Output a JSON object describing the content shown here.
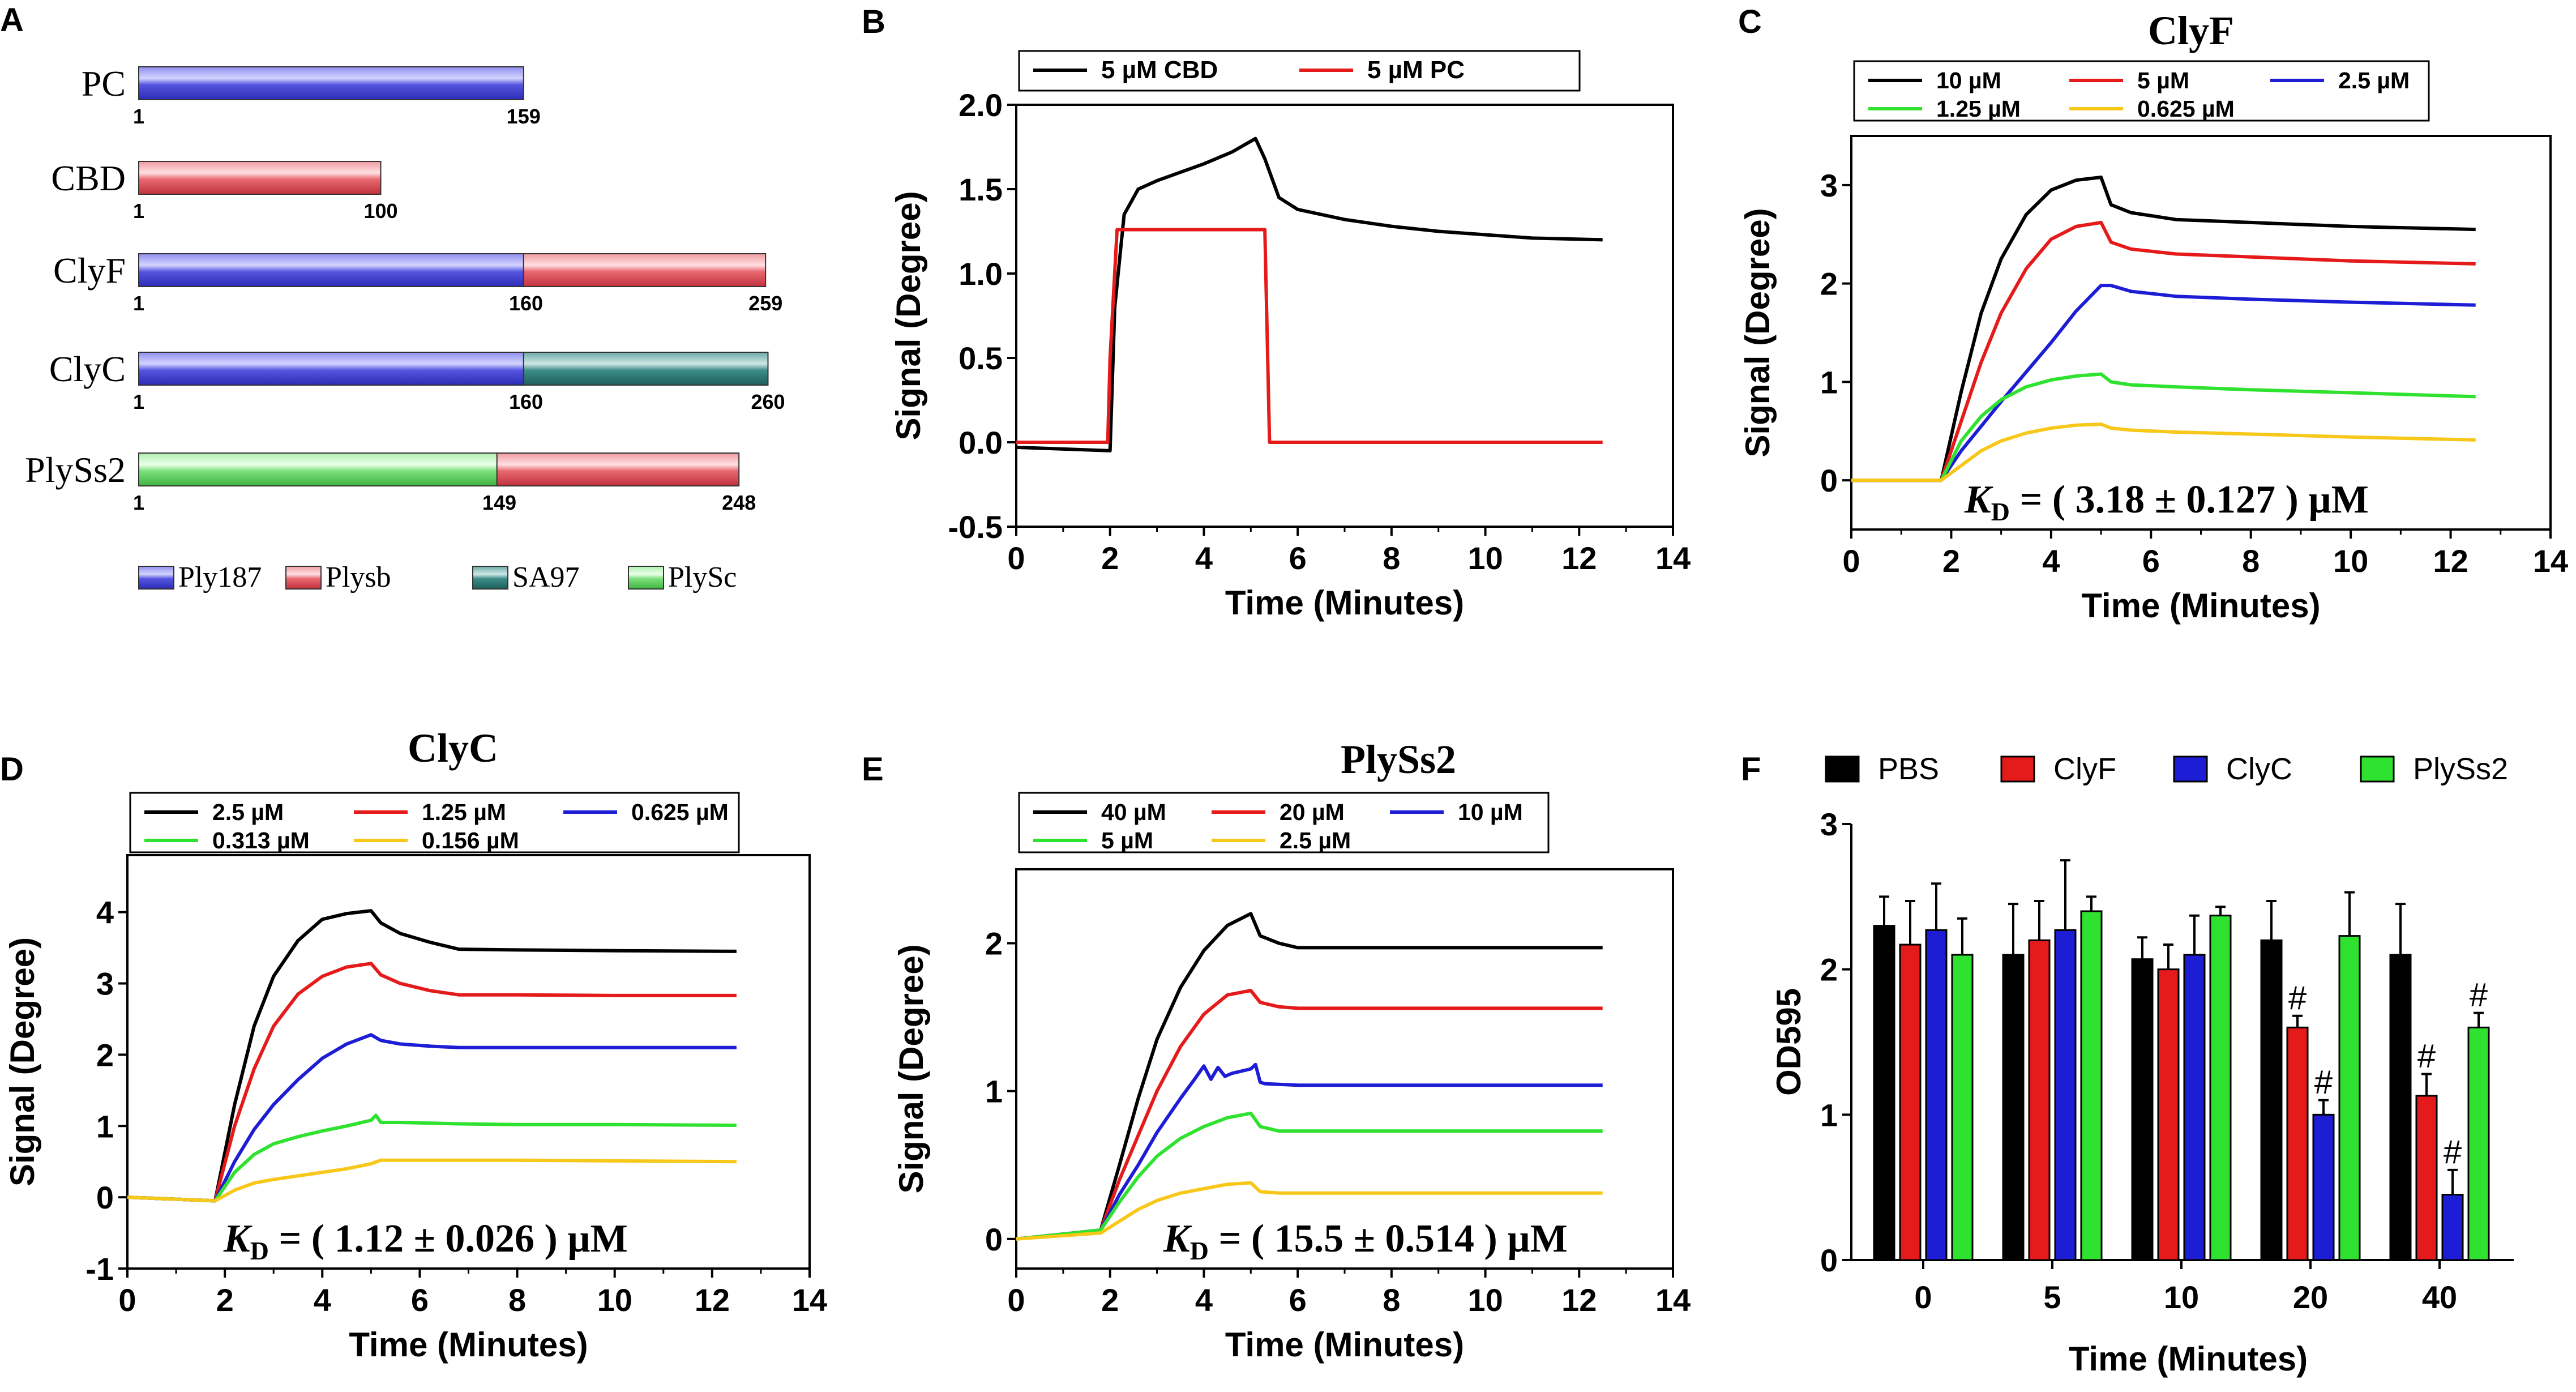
{
  "colors": {
    "ply187": "#4a4ad6",
    "plysb": "#e25560",
    "sa97": "#2e7d7a",
    "plysc": "#7ce07c",
    "black": "#000000",
    "red": "#e51b1b",
    "blue": "#1d1dd6",
    "green": "#2fe22f",
    "yellow": "#f7c81a"
  },
  "panel_labels": [
    "A",
    "B",
    "C",
    "D",
    "E",
    "F"
  ],
  "panel_a": {
    "constructs": [
      {
        "name": "PC",
        "segments": [
          {
            "domain": "ply187",
            "start": 1,
            "end": 159
          }
        ],
        "labels": [
          "1",
          "159"
        ]
      },
      {
        "name": "CBD",
        "segments": [
          {
            "domain": "plysb",
            "start": 1,
            "end": 100
          }
        ],
        "labels": [
          "1",
          "100"
        ]
      },
      {
        "name": "ClyF",
        "segments": [
          {
            "domain": "ply187",
            "start": 1,
            "end": 160
          },
          {
            "domain": "plysb",
            "start": 160,
            "end": 259
          }
        ],
        "labels": [
          "1",
          "160",
          "259"
        ]
      },
      {
        "name": "ClyC",
        "segments": [
          {
            "domain": "ply187",
            "start": 1,
            "end": 160
          },
          {
            "domain": "sa97",
            "start": 160,
            "end": 260
          }
        ],
        "labels": [
          "1",
          "160",
          "260"
        ]
      },
      {
        "name": "PlySs2",
        "segments": [
          {
            "domain": "plysc",
            "start": 1,
            "end": 149
          },
          {
            "domain": "plysb",
            "start": 149,
            "end": 248
          }
        ],
        "labels": [
          "1",
          "149",
          "248"
        ]
      }
    ],
    "legend": [
      {
        "key": "ply187",
        "label": "Ply187"
      },
      {
        "key": "plysb",
        "label": "Plysb"
      },
      {
        "key": "sa97",
        "label": "SA97"
      },
      {
        "key": "plysc",
        "label": "PlySc"
      }
    ]
  },
  "chart_data": [
    {
      "id": "B",
      "type": "line",
      "title": "",
      "xlabel": "Time (Minutes)",
      "ylabel": "Signal (Degree)",
      "xlim": [
        0,
        14
      ],
      "ylim": [
        -0.5,
        2.0
      ],
      "xticks": [
        "0",
        "2",
        "4",
        "6",
        "8",
        "10",
        "12",
        "14"
      ],
      "yticks": [
        "-0.5",
        "0.0",
        "0.5",
        "1.0",
        "1.5",
        "2.0"
      ],
      "series": [
        {
          "name": "5 µM CBD",
          "color": "black",
          "x": [
            0,
            1,
            2,
            2.1,
            2.3,
            2.6,
            3.0,
            3.5,
            4.0,
            4.6,
            5.1,
            5.3,
            5.6,
            6.0,
            7,
            8,
            9,
            10,
            11,
            12.5
          ],
          "y": [
            -0.03,
            -0.04,
            -0.05,
            0.8,
            1.35,
            1.5,
            1.55,
            1.6,
            1.65,
            1.72,
            1.8,
            1.68,
            1.45,
            1.38,
            1.32,
            1.28,
            1.25,
            1.23,
            1.21,
            1.2
          ]
        },
        {
          "name": "5 µM PC",
          "color": "red",
          "x": [
            0,
            1.95,
            2.0,
            2.15,
            5.3,
            5.4,
            12.5
          ],
          "y": [
            0.0,
            0.0,
            0.5,
            1.26,
            1.26,
            0.0,
            0.0
          ]
        }
      ]
    },
    {
      "id": "C",
      "type": "line",
      "title": "ClyF",
      "xlabel": "Time (Minutes)",
      "ylabel": "Signal (Degree)",
      "xlim": [
        0,
        14
      ],
      "ylim": [
        -0.5,
        3.5
      ],
      "xticks": [
        "0",
        "2",
        "4",
        "6",
        "8",
        "10",
        "12",
        "14"
      ],
      "yticks": [
        "0",
        "1",
        "2",
        "3"
      ],
      "annotation": {
        "prefix": "K",
        "sub": "D",
        "text": " = ( 3.18 ± 0.127 )  µM"
      },
      "series": [
        {
          "name": "10 µM",
          "color": "black",
          "x": [
            0,
            1.8,
            2.2,
            2.6,
            3.0,
            3.5,
            4.0,
            4.5,
            5.0,
            5.2,
            5.6,
            6.5,
            8,
            10,
            12.5
          ],
          "y": [
            0,
            0,
            0.9,
            1.7,
            2.25,
            2.7,
            2.95,
            3.05,
            3.08,
            2.8,
            2.72,
            2.65,
            2.62,
            2.58,
            2.55
          ]
        },
        {
          "name": "5 µM",
          "color": "red",
          "x": [
            0,
            1.8,
            2.2,
            2.6,
            3.0,
            3.5,
            4.0,
            4.5,
            5.0,
            5.2,
            5.6,
            6.5,
            8,
            10,
            12.5
          ],
          "y": [
            0,
            0,
            0.6,
            1.2,
            1.7,
            2.15,
            2.45,
            2.58,
            2.62,
            2.42,
            2.35,
            2.3,
            2.27,
            2.23,
            2.2
          ]
        },
        {
          "name": "2.5 µM",
          "color": "blue",
          "x": [
            0,
            1.8,
            2.2,
            2.6,
            3.0,
            3.5,
            4.0,
            4.5,
            5.0,
            5.2,
            5.6,
            6.5,
            8,
            10,
            12.5
          ],
          "y": [
            0,
            0,
            0.3,
            0.55,
            0.8,
            1.1,
            1.4,
            1.72,
            1.98,
            1.98,
            1.92,
            1.87,
            1.84,
            1.81,
            1.78
          ]
        },
        {
          "name": "1.25 µM",
          "color": "green",
          "x": [
            0,
            1.8,
            2.2,
            2.6,
            3.0,
            3.5,
            4.0,
            4.5,
            5.0,
            5.2,
            5.6,
            6.5,
            8,
            10,
            12.5
          ],
          "y": [
            0,
            0,
            0.4,
            0.65,
            0.82,
            0.95,
            1.02,
            1.06,
            1.08,
            1.0,
            0.97,
            0.95,
            0.92,
            0.89,
            0.85
          ]
        },
        {
          "name": "0.625 µM",
          "color": "yellow",
          "x": [
            0,
            1.8,
            2.2,
            2.6,
            3.0,
            3.5,
            4.0,
            4.5,
            5.0,
            5.2,
            5.6,
            6.5,
            8,
            10,
            12.5
          ],
          "y": [
            0,
            0,
            0.15,
            0.3,
            0.4,
            0.48,
            0.53,
            0.56,
            0.57,
            0.53,
            0.51,
            0.49,
            0.47,
            0.44,
            0.41
          ]
        }
      ]
    },
    {
      "id": "D",
      "type": "line",
      "title": "ClyC",
      "xlabel": "Time (Minutes)",
      "ylabel": "Signal (Degree)",
      "xlim": [
        0,
        14
      ],
      "ylim": [
        -1,
        4.8
      ],
      "xticks": [
        "0",
        "2",
        "4",
        "6",
        "8",
        "10",
        "12",
        "14"
      ],
      "yticks": [
        "-1",
        "0",
        "1",
        "2",
        "3",
        "4"
      ],
      "annotation": {
        "prefix": "K",
        "sub": "D",
        "text": " = ( 1.12 ± 0.026 )  µM"
      },
      "series": [
        {
          "name": "2.5 µM",
          "color": "black",
          "x": [
            0,
            1.8,
            2.2,
            2.6,
            3.0,
            3.5,
            4.0,
            4.5,
            5.0,
            5.2,
            5.6,
            6.2,
            6.8,
            8,
            10,
            12.5
          ],
          "y": [
            0,
            -0.05,
            1.3,
            2.4,
            3.1,
            3.6,
            3.9,
            3.98,
            4.02,
            3.85,
            3.7,
            3.58,
            3.48,
            3.47,
            3.46,
            3.45
          ]
        },
        {
          "name": "1.25 µM",
          "color": "red",
          "x": [
            0,
            1.8,
            2.2,
            2.6,
            3.0,
            3.5,
            4.0,
            4.5,
            5.0,
            5.2,
            5.6,
            6.2,
            6.8,
            8,
            10,
            12.5
          ],
          "y": [
            0,
            -0.05,
            1.0,
            1.8,
            2.4,
            2.85,
            3.1,
            3.23,
            3.28,
            3.12,
            3.0,
            2.9,
            2.84,
            2.84,
            2.83,
            2.83
          ]
        },
        {
          "name": "0.625 µM",
          "color": "blue",
          "x": [
            0,
            1.8,
            2.2,
            2.6,
            3.0,
            3.5,
            4.0,
            4.5,
            5.0,
            5.2,
            5.6,
            6.2,
            6.8,
            8,
            10,
            12.5
          ],
          "y": [
            0,
            -0.05,
            0.5,
            0.95,
            1.3,
            1.65,
            1.95,
            2.15,
            2.28,
            2.2,
            2.15,
            2.12,
            2.1,
            2.1,
            2.1,
            2.1
          ]
        },
        {
          "name": "0.313 µM",
          "color": "green",
          "x": [
            0,
            1.8,
            2.2,
            2.6,
            3.0,
            3.5,
            4.0,
            4.5,
            5.0,
            5.1,
            5.2,
            5.6,
            6.2,
            6.8,
            8,
            10,
            12.5
          ],
          "y": [
            0,
            -0.05,
            0.35,
            0.6,
            0.75,
            0.85,
            0.93,
            1.0,
            1.08,
            1.15,
            1.05,
            1.05,
            1.04,
            1.03,
            1.02,
            1.02,
            1.01
          ]
        },
        {
          "name": "0.156 µM",
          "color": "yellow",
          "x": [
            0,
            1.8,
            2.2,
            2.6,
            3.0,
            3.5,
            4.0,
            4.5,
            5.0,
            5.2,
            5.6,
            6.2,
            6.8,
            8,
            10,
            12.5
          ],
          "y": [
            0,
            -0.05,
            0.1,
            0.2,
            0.25,
            0.3,
            0.35,
            0.4,
            0.47,
            0.52,
            0.52,
            0.52,
            0.52,
            0.52,
            0.51,
            0.5
          ]
        }
      ]
    },
    {
      "id": "E",
      "type": "line",
      "title": "PlySs2",
      "xlabel": "Time (Minutes)",
      "ylabel": "Signal (Degree)",
      "xlim": [
        0,
        14
      ],
      "ylim": [
        -0.2,
        2.5
      ],
      "xticks": [
        "0",
        "2",
        "4",
        "6",
        "8",
        "10",
        "12",
        "14"
      ],
      "yticks": [
        "0",
        "1",
        "2"
      ],
      "annotation": {
        "prefix": "K",
        "sub": "D",
        "text": " = ( 15.5 ± 0.514 )  µM"
      },
      "series": [
        {
          "name": "40 µM",
          "color": "black",
          "x": [
            0,
            1.8,
            2.2,
            2.6,
            3.0,
            3.5,
            4.0,
            4.5,
            5.0,
            5.2,
            5.6,
            6.0,
            7,
            8,
            10,
            12.5
          ],
          "y": [
            0,
            0.06,
            0.5,
            0.95,
            1.35,
            1.7,
            1.95,
            2.12,
            2.2,
            2.05,
            2.0,
            1.97,
            1.97,
            1.97,
            1.97,
            1.97
          ]
        },
        {
          "name": "20 µM",
          "color": "red",
          "x": [
            0,
            1.8,
            2.2,
            2.6,
            3.0,
            3.5,
            4.0,
            4.5,
            5.0,
            5.2,
            5.6,
            6.0,
            7,
            8,
            10,
            12.5
          ],
          "y": [
            0,
            0.06,
            0.4,
            0.7,
            1.0,
            1.3,
            1.52,
            1.65,
            1.68,
            1.6,
            1.57,
            1.56,
            1.56,
            1.56,
            1.56,
            1.56
          ]
        },
        {
          "name": "10 µM",
          "color": "blue",
          "x": [
            0,
            1.8,
            2.2,
            2.6,
            3.0,
            3.5,
            3.8,
            4.0,
            4.15,
            4.3,
            4.45,
            4.6,
            5.0,
            5.1,
            5.2,
            5.3,
            6.0,
            8,
            10,
            12.5
          ],
          "y": [
            0,
            0.06,
            0.3,
            0.5,
            0.72,
            0.95,
            1.08,
            1.17,
            1.08,
            1.16,
            1.1,
            1.12,
            1.15,
            1.18,
            1.06,
            1.05,
            1.04,
            1.04,
            1.04,
            1.04
          ]
        },
        {
          "name": "5 µM",
          "color": "green",
          "x": [
            0,
            1.8,
            2.2,
            2.6,
            3.0,
            3.5,
            4.0,
            4.5,
            5.0,
            5.2,
            5.6,
            6.0,
            8,
            10,
            12.5
          ],
          "y": [
            0,
            0.06,
            0.25,
            0.42,
            0.56,
            0.68,
            0.76,
            0.82,
            0.85,
            0.76,
            0.73,
            0.73,
            0.73,
            0.73,
            0.73
          ]
        },
        {
          "name": "2.5 µM",
          "color": "yellow",
          "x": [
            0,
            1.8,
            2.2,
            2.6,
            3.0,
            3.5,
            4.0,
            4.5,
            5.0,
            5.2,
            5.6,
            6.0,
            8,
            10,
            12.5
          ],
          "y": [
            0,
            0.04,
            0.12,
            0.2,
            0.26,
            0.31,
            0.34,
            0.37,
            0.38,
            0.32,
            0.31,
            0.31,
            0.31,
            0.31,
            0.31
          ]
        }
      ]
    },
    {
      "id": "F",
      "type": "bar",
      "xlabel": "Time (Minutes)",
      "ylabel": "OD595",
      "ylim": [
        0,
        3
      ],
      "yticks": [
        "0",
        "1",
        "2",
        "3"
      ],
      "categories": [
        "0",
        "5",
        "10",
        "20",
        "40"
      ],
      "series": [
        {
          "name": "PBS",
          "color": "black",
          "values": [
            2.3,
            2.1,
            2.07,
            2.2,
            2.1
          ],
          "err": [
            0.2,
            0.35,
            0.15,
            0.27,
            0.35
          ],
          "hash": [
            false,
            false,
            false,
            false,
            false
          ]
        },
        {
          "name": "ClyF",
          "color": "red",
          "values": [
            2.17,
            2.2,
            2.0,
            1.6,
            1.13
          ],
          "err": [
            0.3,
            0.27,
            0.17,
            0.08,
            0.15
          ],
          "hash": [
            false,
            false,
            false,
            true,
            true
          ]
        },
        {
          "name": "ClyC",
          "color": "blue",
          "values": [
            2.27,
            2.27,
            2.1,
            1.0,
            0.45
          ],
          "err": [
            0.32,
            0.48,
            0.27,
            0.1,
            0.17
          ],
          "hash": [
            false,
            false,
            false,
            true,
            true
          ]
        },
        {
          "name": "PlySs2",
          "color": "green",
          "values": [
            2.1,
            2.4,
            2.37,
            2.23,
            1.6
          ],
          "err": [
            0.25,
            0.1,
            0.06,
            0.3,
            0.1
          ],
          "hash": [
            false,
            false,
            false,
            false,
            true
          ]
        }
      ],
      "hash_label": "#"
    }
  ]
}
